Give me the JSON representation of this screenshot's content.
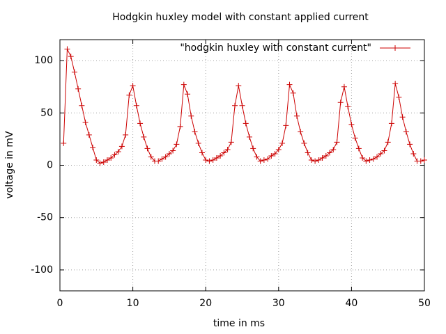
{
  "chart_data": {
    "type": "line",
    "title": "Hodgkin huxley model with constant applied current",
    "x_label": "time in ms",
    "y_label": "voltage in mV",
    "xlim": [
      0,
      50
    ],
    "xticks": [
      0,
      10,
      20,
      30,
      40,
      50
    ],
    "ylim": [
      -120,
      120
    ],
    "yticks": [
      -100,
      -50,
      0,
      50,
      100
    ],
    "grid": true,
    "legend": "top-right",
    "x": [
      0.5,
      1,
      1.5,
      2,
      2.5,
      3,
      3.5,
      4,
      4.5,
      5,
      5.5,
      6,
      6.5,
      7,
      7.5,
      8,
      8.5,
      9,
      9.5,
      10,
      10.5,
      11,
      11.5,
      12,
      12.5,
      13,
      13.5,
      14,
      14.5,
      15,
      15.5,
      16,
      16.5,
      17,
      17.5,
      18,
      18.5,
      19,
      19.5,
      20,
      20.5,
      21,
      21.5,
      22,
      22.5,
      23,
      23.5,
      24,
      24.5,
      25,
      25.5,
      26,
      26.5,
      27,
      27.5,
      28,
      28.5,
      29,
      29.5,
      30,
      30.5,
      31,
      31.5,
      32,
      32.5,
      33,
      33.5,
      34,
      34.5,
      35,
      35.5,
      36,
      36.5,
      37,
      37.5,
      38,
      38.5,
      39,
      39.5,
      40,
      40.5,
      41,
      41.5,
      42,
      42.5,
      43,
      43.5,
      44,
      44.5,
      45,
      45.5,
      46,
      46.5,
      47,
      47.5,
      48,
      48.5,
      49,
      49.5,
      50
    ],
    "series": [
      {
        "name": "\"hodgkin huxley with constant current\"",
        "color": "#cc0000",
        "values": [
          21,
          111,
          104,
          89,
          73,
          57,
          41,
          29,
          17,
          5,
          2,
          3,
          5,
          7,
          10,
          13,
          18,
          29,
          67,
          76,
          57,
          40,
          27,
          16,
          8,
          4,
          4,
          6,
          8,
          11,
          14,
          20,
          37,
          77,
          68,
          47,
          32,
          21,
          12,
          5,
          4,
          5,
          7,
          9,
          12,
          15,
          22,
          57,
          76,
          57,
          40,
          27,
          16,
          8,
          4,
          5,
          6,
          9,
          11,
          15,
          21,
          38,
          77,
          69,
          47,
          32,
          21,
          12,
          5,
          4,
          5,
          7,
          9,
          12,
          15,
          22,
          60,
          75,
          56,
          39,
          26,
          16,
          7,
          4,
          5,
          6,
          8,
          11,
          14,
          22,
          40,
          78,
          65,
          46,
          32,
          20,
          11,
          4,
          4,
          5
        ]
      }
    ]
  }
}
